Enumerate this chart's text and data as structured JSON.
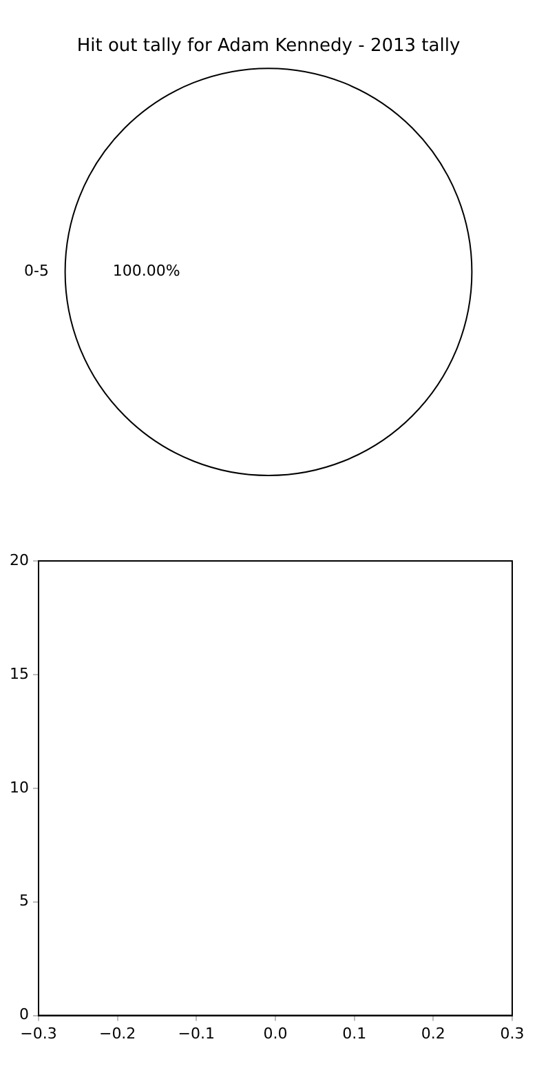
{
  "chart_data": [
    {
      "type": "pie",
      "title": "Hit out tally for Adam Kennedy - 2013 tally",
      "categories": [
        "0-5"
      ],
      "values": [
        100
      ],
      "colors": [
        "#ffffff"
      ],
      "value_labels": [
        "100.00%"
      ],
      "legend": false
    },
    {
      "type": "scatter",
      "xlim": [
        -0.3,
        0.3
      ],
      "xticks": [
        {
          "value": -0.3,
          "label": "−0.3"
        },
        {
          "value": -0.2,
          "label": "−0.2"
        },
        {
          "value": -0.1,
          "label": "−0.1"
        },
        {
          "value": 0,
          "label": "0.0"
        },
        {
          "value": 0.1,
          "label": "0.1"
        },
        {
          "value": 0.2,
          "label": "0.2"
        },
        {
          "value": 0.3,
          "label": "0.3"
        }
      ],
      "ylim": [
        0,
        20
      ],
      "yticks": [
        0,
        5,
        10,
        15,
        20
      ],
      "legend": false
    }
  ]
}
